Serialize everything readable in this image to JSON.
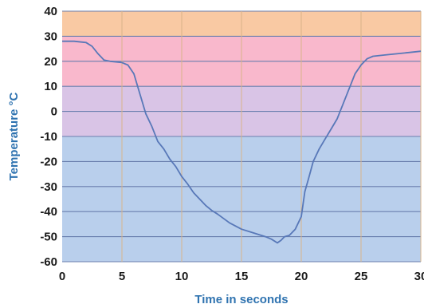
{
  "chart_data": {
    "type": "line",
    "title": "",
    "xlabel": "Time in seconds",
    "ylabel": "Temperature °C",
    "xlim": [
      0,
      30
    ],
    "ylim": [
      -60,
      40
    ],
    "x_ticks": [
      "0",
      "5",
      "10",
      "15",
      "20",
      "25",
      "30"
    ],
    "y_ticks": [
      "40",
      "30",
      "20",
      "10",
      "0",
      "-10",
      "-20",
      "-30",
      "-40",
      "-50",
      "-60"
    ],
    "grid": true,
    "legend": "none",
    "background_bands": [
      {
        "from": 40,
        "to": 30,
        "color": "#f9c9a3"
      },
      {
        "from": 30,
        "to": 10,
        "color": "#f9b8cc"
      },
      {
        "from": 10,
        "to": -10,
        "color": "#d9c4e6"
      },
      {
        "from": -10,
        "to": -60,
        "color": "#b9cfec"
      }
    ],
    "line_color": "#5878b8",
    "series": [
      {
        "x": [
          0,
          1,
          2,
          2.5,
          3,
          3.5,
          4,
          5,
          5.5,
          6,
          6.5,
          7,
          7.5,
          8,
          8.5,
          9,
          9.5,
          10,
          10.5,
          11,
          11.5,
          12,
          12.5,
          13,
          14,
          15,
          16,
          17,
          17.5,
          18,
          18.3,
          18.6,
          19,
          19.5,
          20,
          20.3,
          20.6,
          21,
          21.5,
          22,
          22.5,
          23,
          23.5,
          24,
          24.5,
          25,
          25.5,
          26,
          27,
          28,
          29,
          30
        ],
        "y": [
          28,
          28,
          27.5,
          26,
          23,
          20.5,
          20,
          19.5,
          18.5,
          15,
          7,
          -1,
          -6,
          -12,
          -15,
          -19,
          -22,
          -26,
          -29,
          -32.5,
          -35,
          -37.5,
          -39.5,
          -41,
          -44.5,
          -47,
          -48.5,
          -50,
          -51,
          -52.5,
          -51.5,
          -50,
          -49.5,
          -47,
          -42,
          -32,
          -27,
          -20,
          -15,
          -11,
          -7,
          -3,
          3,
          9,
          15,
          18.5,
          21,
          22,
          22.5,
          23,
          23.5,
          24
        ]
      }
    ]
  }
}
